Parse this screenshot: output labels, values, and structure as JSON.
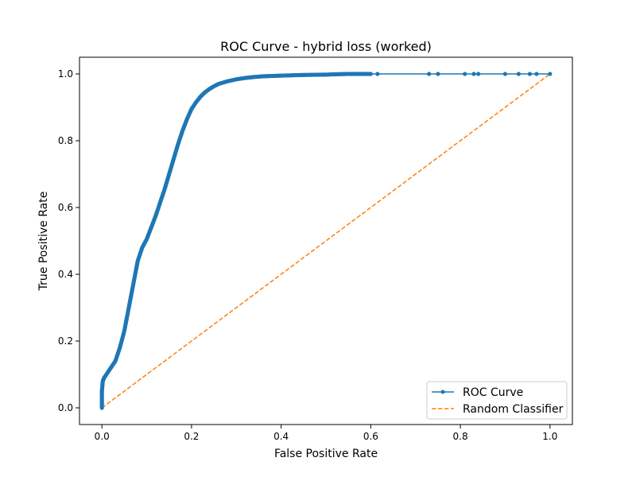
{
  "chart_data": {
    "type": "line",
    "title": "ROC Curve - hybrid loss (worked)",
    "xlabel": "False Positive Rate",
    "ylabel": "True Positive Rate",
    "xlim": [
      -0.05,
      1.05
    ],
    "ylim": [
      -0.05,
      1.05
    ],
    "xticks": [
      0.0,
      0.2,
      0.4,
      0.6,
      0.8,
      1.0
    ],
    "yticks": [
      0.0,
      0.2,
      0.4,
      0.6,
      0.8,
      1.0
    ],
    "xtick_labels": [
      "0.0",
      "0.2",
      "0.4",
      "0.6",
      "0.8",
      "1.0"
    ],
    "ytick_labels": [
      "0.0",
      "0.2",
      "0.4",
      "0.6",
      "0.8",
      "1.0"
    ],
    "grid": false,
    "legend_position": "bottom-right",
    "series": [
      {
        "name": "ROC Curve",
        "color": "#1f77b4",
        "style": "solid-with-markers",
        "x": [
          0.0,
          0.0,
          0.0,
          0.002,
          0.005,
          0.01,
          0.02,
          0.03,
          0.04,
          0.05,
          0.06,
          0.07,
          0.08,
          0.09,
          0.1,
          0.11,
          0.12,
          0.13,
          0.14,
          0.15,
          0.16,
          0.17,
          0.18,
          0.19,
          0.2,
          0.21,
          0.22,
          0.23,
          0.24,
          0.25,
          0.26,
          0.28,
          0.3,
          0.32,
          0.34,
          0.36,
          0.4,
          0.45,
          0.5,
          0.52,
          0.55,
          0.57,
          0.59,
          0.6,
          0.615,
          0.73,
          0.75,
          0.81,
          0.83,
          0.84,
          0.9,
          0.93,
          0.955,
          0.97,
          1.0
        ],
        "y": [
          0.0,
          0.02,
          0.05,
          0.08,
          0.09,
          0.1,
          0.12,
          0.14,
          0.18,
          0.23,
          0.3,
          0.37,
          0.44,
          0.48,
          0.505,
          0.54,
          0.575,
          0.615,
          0.655,
          0.7,
          0.745,
          0.79,
          0.83,
          0.865,
          0.895,
          0.915,
          0.932,
          0.945,
          0.955,
          0.963,
          0.97,
          0.978,
          0.984,
          0.988,
          0.991,
          0.993,
          0.995,
          0.997,
          0.998,
          0.999,
          1.0,
          1.0,
          1.0,
          1.0,
          1.0,
          1.0,
          1.0,
          1.0,
          1.0,
          1.0,
          1.0,
          1.0,
          1.0,
          1.0,
          1.0
        ]
      },
      {
        "name": "Random Classifier",
        "color": "#ff7f0e",
        "style": "dashed",
        "x": [
          0.0,
          1.0
        ],
        "y": [
          0.0,
          1.0
        ]
      }
    ]
  }
}
